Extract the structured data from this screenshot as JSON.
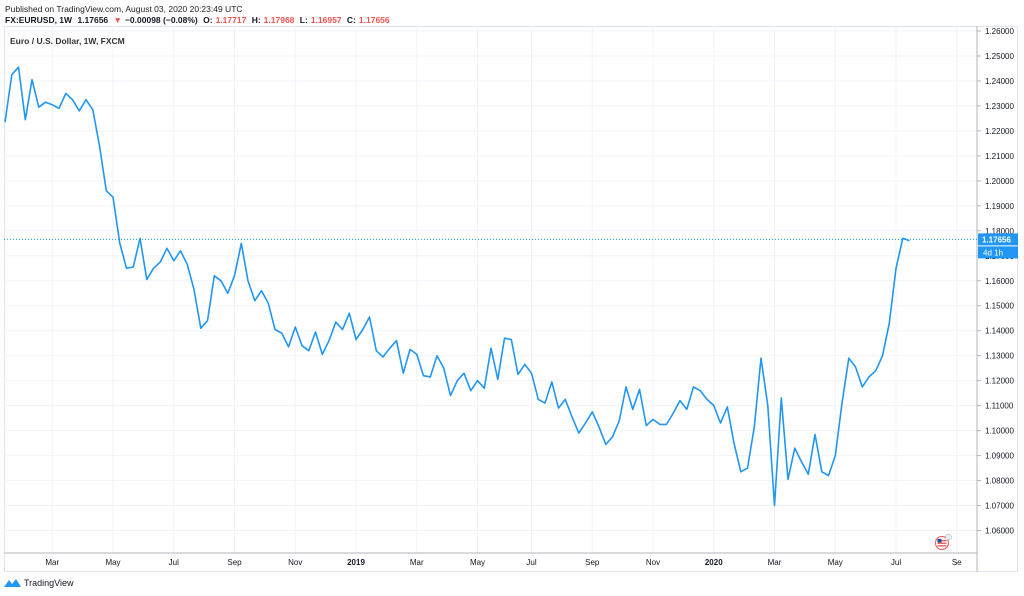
{
  "header": {
    "published": "Published on TradingView.com, August 03, 2020 20:23:49 UTC",
    "symbol": "FX:EURUSD, 1W",
    "last": "1.17656",
    "change": "−0.00098 (−0.08%)",
    "open_label": "O:",
    "open": "1.17717",
    "high_label": "H:",
    "high": "1.17968",
    "low_label": "L:",
    "low": "1.16957",
    "close_label": "C:",
    "close": "1.17656",
    "down_arrow": "▼"
  },
  "footer": {
    "brand": "TradingView",
    "logo_icon": "tradingview-logo-icon"
  },
  "chart_data": {
    "type": "line",
    "title": "Euro / U.S. Dollar, 1W, FXCM",
    "ylim": [
      1.051,
      1.262
    ],
    "y_ticks": [
      "1.26000",
      "1.25000",
      "1.24000",
      "1.23000",
      "1.22000",
      "1.21000",
      "1.20000",
      "1.19000",
      "1.18000",
      "1.17000",
      "1.16000",
      "1.15000",
      "1.14000",
      "1.13000",
      "1.12000",
      "1.11000",
      "1.10000",
      "1.09000",
      "1.08000",
      "1.07000",
      "1.06000"
    ],
    "x_ticks": [
      {
        "label": "Mar",
        "i": 7,
        "bold": false
      },
      {
        "label": "May",
        "i": 16,
        "bold": false
      },
      {
        "label": "Jul",
        "i": 25,
        "bold": false
      },
      {
        "label": "Sep",
        "i": 34,
        "bold": false
      },
      {
        "label": "Nov",
        "i": 43,
        "bold": false
      },
      {
        "label": "2019",
        "i": 52,
        "bold": true
      },
      {
        "label": "Mar",
        "i": 61,
        "bold": false
      },
      {
        "label": "May",
        "i": 70,
        "bold": false
      },
      {
        "label": "Jul",
        "i": 78,
        "bold": false
      },
      {
        "label": "Sep",
        "i": 87,
        "bold": false
      },
      {
        "label": "Nov",
        "i": 96,
        "bold": false
      },
      {
        "label": "2020",
        "i": 105,
        "bold": true
      },
      {
        "label": "Mar",
        "i": 114,
        "bold": false
      },
      {
        "label": "May",
        "i": 123,
        "bold": false
      },
      {
        "label": "Jul",
        "i": 132,
        "bold": false
      },
      {
        "label": "Se",
        "i": 141,
        "bold": false
      }
    ],
    "last_value": 1.17656,
    "last_label": "1.17656",
    "countdown": "4d 1h",
    "line_color": "#2196f3",
    "values": [
      1.2235,
      1.2425,
      1.2455,
      1.2245,
      1.2405,
      1.2295,
      1.2315,
      1.2305,
      1.229,
      1.235,
      1.2325,
      1.228,
      1.2325,
      1.2285,
      1.214,
      1.196,
      1.1935,
      1.175,
      1.165,
      1.1655,
      1.177,
      1.1605,
      1.165,
      1.1675,
      1.173,
      1.168,
      1.172,
      1.1665,
      1.1565,
      1.141,
      1.144,
      1.162,
      1.16,
      1.155,
      1.162,
      1.175,
      1.16,
      1.152,
      1.156,
      1.151,
      1.1405,
      1.139,
      1.1335,
      1.1415,
      1.134,
      1.132,
      1.1395,
      1.1305,
      1.136,
      1.1435,
      1.1405,
      1.147,
      1.1365,
      1.1405,
      1.1455,
      1.132,
      1.1295,
      1.133,
      1.136,
      1.123,
      1.1325,
      1.1305,
      1.122,
      1.1215,
      1.13,
      1.125,
      1.114,
      1.12,
      1.123,
      1.116,
      1.12,
      1.117,
      1.133,
      1.1205,
      1.137,
      1.1365,
      1.1225,
      1.1265,
      1.123,
      1.1125,
      1.111,
      1.1195,
      1.109,
      1.1125,
      1.1055,
      1.099,
      1.103,
      1.1075,
      1.1015,
      1.0945,
      1.0975,
      1.104,
      1.1175,
      1.1085,
      1.1165,
      1.102,
      1.1045,
      1.1025,
      1.1025,
      1.107,
      1.112,
      1.1085,
      1.1175,
      1.116,
      1.1125,
      1.11,
      1.103,
      1.1095,
      1.095,
      1.0835,
      1.085,
      1.1015,
      1.129,
      1.11,
      1.07,
      1.113,
      1.0805,
      1.093,
      1.0875,
      1.0825,
      1.0985,
      1.0835,
      1.082,
      1.09,
      1.111,
      1.129,
      1.1255,
      1.1175,
      1.1215,
      1.124,
      1.13,
      1.143,
      1.165,
      1.177,
      1.176
    ]
  }
}
